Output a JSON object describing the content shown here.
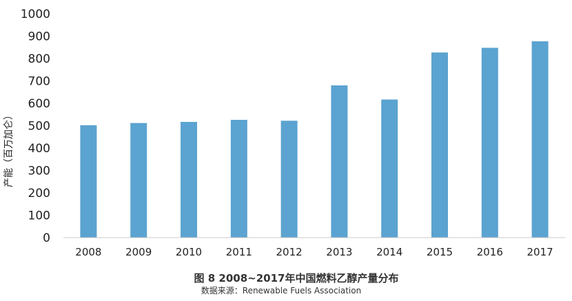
{
  "chart_data": {
    "type": "bar",
    "title": "图 8 2008~2017年中国燃料乙醇产量分布",
    "source": "数据来源：Renewable Fuels Association",
    "ylabel": "产能（百万加仑）",
    "xlabel": "",
    "categories": [
      "2008",
      "2009",
      "2010",
      "2011",
      "2012",
      "2013",
      "2014",
      "2015",
      "2016",
      "2017"
    ],
    "values": [
      502,
      512,
      517,
      526,
      522,
      680,
      617,
      827,
      848,
      877
    ],
    "ylim": [
      0,
      1000
    ],
    "yticks": [
      0,
      100,
      200,
      300,
      400,
      500,
      600,
      700,
      800,
      900,
      1000
    ],
    "bar_color": "#5ba3d0",
    "grid": false,
    "legend": "none"
  }
}
